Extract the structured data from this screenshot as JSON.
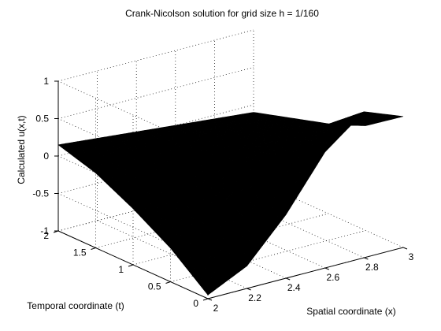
{
  "chart_data": {
    "type": "surface",
    "title": "Crank-Nicolson solution for grid size h = 1/160",
    "xlabel": "Spatial coordinate (x)",
    "ylabel": "Temporal coordinate (t)",
    "zlabel": "Calculated u(x,t)",
    "xlim": [
      2,
      3
    ],
    "ylim": [
      0,
      2
    ],
    "zlim": [
      -1,
      1
    ],
    "xticks": [
      "2",
      "2.2",
      "2.4",
      "2.6",
      "2.8",
      "3"
    ],
    "yticks": [
      "0",
      "0.5",
      "1",
      "1.5",
      "2"
    ],
    "zticks": [
      "-1",
      "-0.5",
      "0",
      "0.5",
      "1"
    ],
    "grid": true,
    "surface_color": "#000000",
    "surface_samples": {
      "x": [
        2.0,
        2.2,
        2.4,
        2.6,
        2.8,
        3.0
      ],
      "t": [
        0,
        0.5,
        1.0,
        1.5,
        2.0
      ],
      "u": [
        [
          -0.95,
          -0.7,
          -0.15,
          0.55,
          0.95,
          0.75
        ],
        [
          -0.55,
          -0.35,
          0.05,
          0.45,
          0.55,
          0.4
        ],
        [
          -0.25,
          -0.05,
          0.1,
          0.2,
          0.25,
          0.2
        ],
        [
          0.0,
          0.05,
          0.1,
          0.12,
          0.1,
          0.05
        ],
        [
          0.15,
          0.1,
          0.05,
          0.0,
          -0.05,
          -0.1
        ]
      ]
    }
  }
}
